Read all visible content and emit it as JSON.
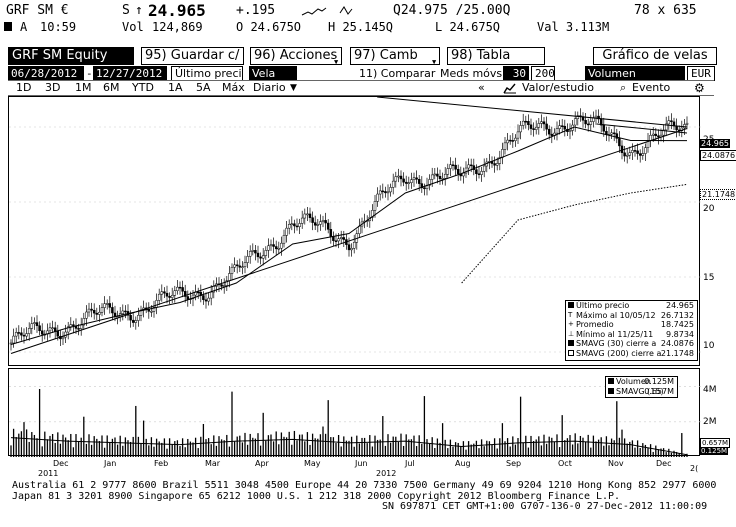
{
  "quote": {
    "ticker": "GRF SM €",
    "side": "S",
    "arrow": "↑",
    "last": "24.965",
    "change": "+.195",
    "bid_ask": "Q24.975 /25.00Q",
    "size": "78 x 635",
    "time_prefix": "A",
    "time": "10:59",
    "vol_label": "Vol",
    "vol": "124,869",
    "open": "O 24.675O",
    "high": "H 25.145Q",
    "low": "L 24.675Q",
    "val": "Val  3.113M"
  },
  "cmdbar": {
    "security": "GRF SM Equity",
    "fn95": "95) Guardar c/",
    "fn96": "96) Acciones",
    "fn97": "97) Camb",
    "fn98": "98) Tabla",
    "title": "Gráfico de velas"
  },
  "row4": {
    "date_from": "06/28/2012",
    "dash": "-",
    "date_to": "12/27/2012",
    "price_field": "Último preci",
    "chart_style": "Vela",
    "compare": "11) Comparar",
    "mavg_label": "Meds móvs",
    "mavg1": "30",
    "mavg2": "200",
    "lower": "Volumen",
    "currency": "EUR"
  },
  "periods": [
    "1D",
    "3D",
    "1M",
    "6M",
    "YTD",
    "1A",
    "5A",
    "Máx"
  ],
  "frequency": "Diario",
  "toolbar": {
    "collapse": "«",
    "value_study": "Valor/estudio",
    "event": "Evento"
  },
  "price_axis": {
    "labels": [
      "25",
      "20",
      "15",
      "10"
    ],
    "last_tag": "24.965",
    "sma30_tag": "24.0876",
    "sma200_tag": "21.1748"
  },
  "legend": {
    "rows": [
      {
        "label": "Último precio",
        "value": "24.965"
      },
      {
        "label": "Máximo al 10/05/12",
        "value": "26.7132"
      },
      {
        "label": "Promedio",
        "value": "18.7425"
      },
      {
        "label": "Mínimo al 11/25/11",
        "value": "9.8734"
      },
      {
        "label": "SMAVG (30) cierre a",
        "value": "24.0876"
      },
      {
        "label": "SMAVG (200) cierre a",
        "value": "21.1748"
      }
    ]
  },
  "vol_legend": {
    "rows": [
      {
        "label": "Volumen",
        "value": "0.125M"
      },
      {
        "label": "SMAVG (15)",
        "value": "0.657M"
      }
    ]
  },
  "vol_axis": {
    "labels": [
      "4M",
      "2M"
    ],
    "tag1": "0.657M",
    "tag2": "0.125M"
  },
  "x_axis": {
    "months": [
      "Dec",
      "Jan",
      "Feb",
      "Mar",
      "Apr",
      "May",
      "Jun",
      "Jul",
      "Aug",
      "Sep",
      "Oct",
      "Nov",
      "Dec"
    ],
    "years": [
      "2011",
      "2012"
    ],
    "tail": "2("
  },
  "footer": {
    "line1": "Australia 61 2 9777 8600 Brazil 5511 3048 4500 Europe 44 20 7330 7500 Germany 49 69 9204 1210 Hong Kong 852 2977 6000",
    "line2": "Japan 81 3 3201 8900        Singapore 65 6212 1000        U.S. 1 212 318 2000          Copyright 2012 Bloomberg Finance L.P.",
    "line3": "SN 697871 CET  GMT+1:00 G707-136-0 27-Dec-2012 11:00:09"
  },
  "chart_data": {
    "type": "candlestick",
    "x": [
      "Dec 2011",
      "Jan",
      "Feb",
      "Mar",
      "Apr",
      "May",
      "Jun",
      "Jul",
      "Aug",
      "Sep",
      "Oct",
      "Nov",
      "Dec 2012"
    ],
    "close": [
      10.6,
      11.9,
      12.7,
      13.6,
      15.1,
      18.7,
      17.6,
      21.8,
      21.6,
      24.4,
      25.6,
      23.6,
      24.965
    ],
    "sma30": [
      10.5,
      11.6,
      12.5,
      13.3,
      14.6,
      17.2,
      17.9,
      20.6,
      21.9,
      23.4,
      25.0,
      24.1,
      24.0876
    ],
    "sma200": [
      null,
      null,
      null,
      null,
      null,
      null,
      null,
      null,
      14.6,
      18.8,
      19.8,
      20.6,
      21.1748
    ],
    "volume_m": [
      1.1,
      0.9,
      0.8,
      0.7,
      0.9,
      1.0,
      0.8,
      0.9,
      0.6,
      0.8,
      0.9,
      0.7,
      0.125
    ],
    "ylim": [
      9,
      27
    ],
    "vol_ylim": [
      0,
      5
    ],
    "yticks": [
      10,
      15,
      20,
      25
    ],
    "grid": true,
    "legend_position": "bottom-right"
  }
}
